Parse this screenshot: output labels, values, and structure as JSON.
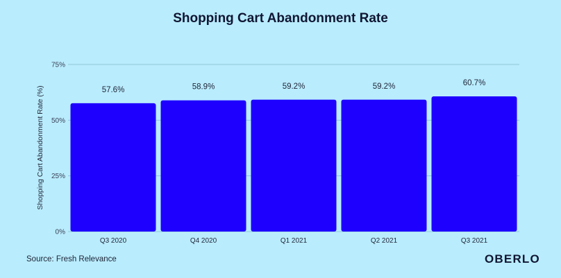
{
  "chart_data": {
    "type": "bar",
    "title": "Shopping Cart Abandonment Rate",
    "xlabel": "",
    "ylabel": "Shopping Cart Abandonment Rate (%)",
    "categories": [
      "Q3 2020",
      "Q4 2020",
      "Q1 2021",
      "Q2 2021",
      "Q3 2021"
    ],
    "values": [
      57.6,
      58.9,
      59.2,
      59.2,
      60.7
    ],
    "data_labels": [
      "57.6%",
      "58.9%",
      "59.2%",
      "59.2%",
      "60.7%"
    ],
    "ylim": [
      0,
      75
    ],
    "yticks": [
      0,
      25,
      50,
      75
    ],
    "ytick_labels": [
      "0%",
      "25%",
      "50%",
      "75%"
    ],
    "grid": true,
    "legend": "none",
    "bar_color": "#1e00ff",
    "background_color": "#b9ecfd"
  },
  "source": "Source: Fresh Relevance",
  "brand": "OBERLO"
}
